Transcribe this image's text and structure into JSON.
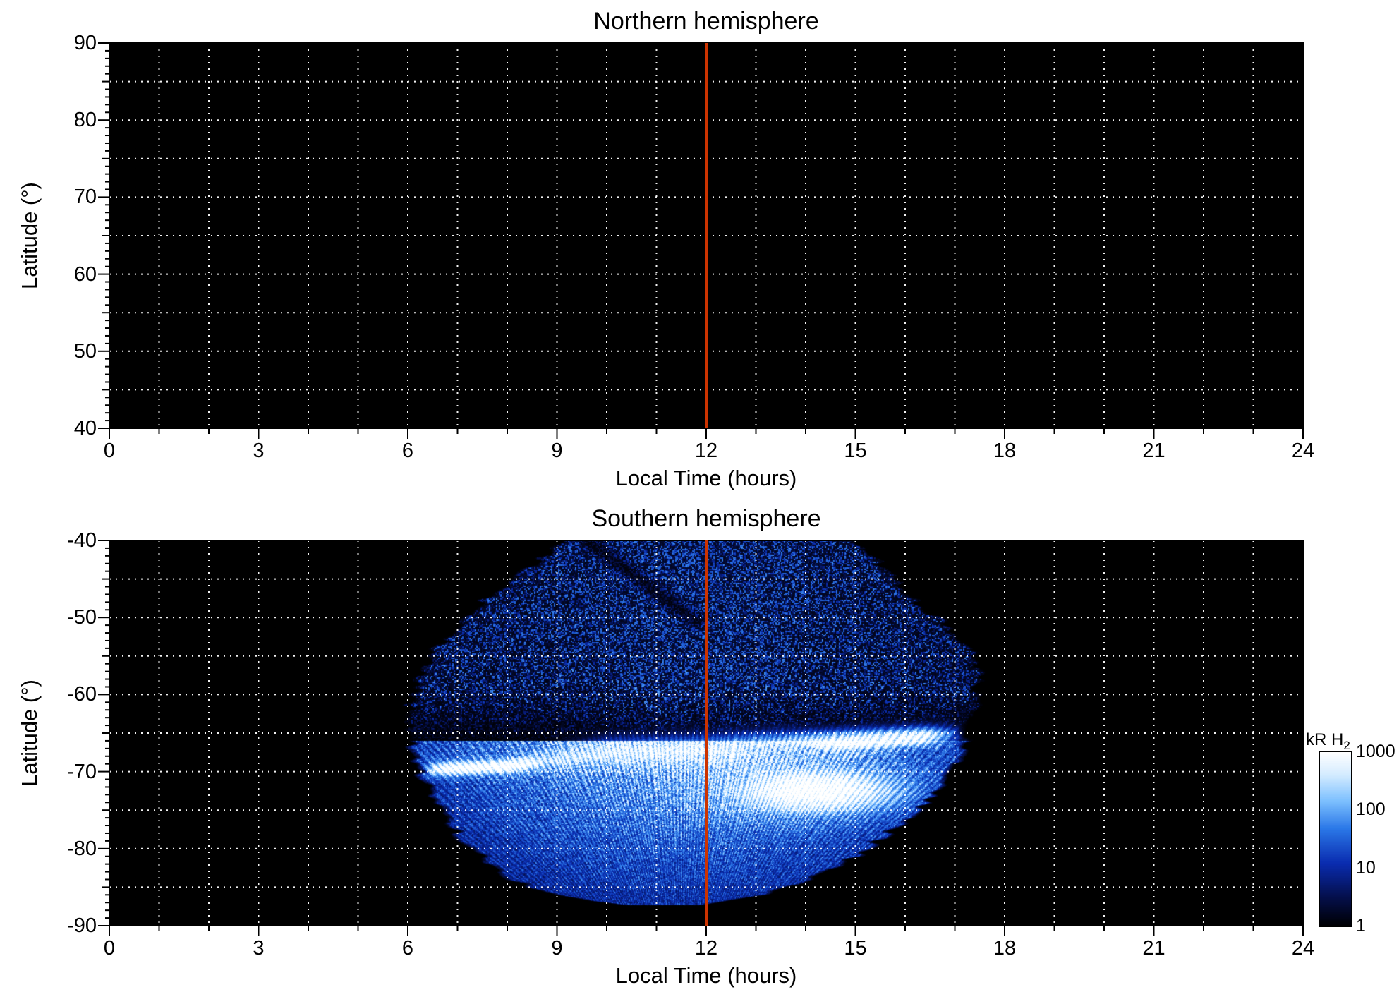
{
  "figure": {
    "background": "#ffffff",
    "grid_color": "#ffffff",
    "axis_color": "#000000",
    "meridian_line_color": "#cc3300"
  },
  "chart_data": [
    {
      "type": "heatmap",
      "panel": "north",
      "title": "Northern hemisphere",
      "xlabel": "Local Time (hours)",
      "ylabel": "Latitude (°)",
      "xlim": [
        0,
        24
      ],
      "ylim": [
        40,
        90
      ],
      "xticks": [
        0,
        3,
        6,
        9,
        12,
        15,
        18,
        21,
        24
      ],
      "yticks": [
        90,
        80,
        70,
        60,
        50,
        40
      ],
      "grid": {
        "x_step_hours": 1,
        "y_step_deg": 5,
        "style": "dotted"
      },
      "background": "#000000",
      "emission": "none - panel entirely at background level (no H2 emission observed)",
      "vertical_line": {
        "x_hours": 12,
        "color": "#cc3300"
      }
    },
    {
      "type": "heatmap",
      "panel": "south",
      "title": "Southern hemisphere",
      "xlabel": "Local Time (hours)",
      "ylabel": "Latitude (°)",
      "xlim": [
        0,
        24
      ],
      "ylim": [
        -90,
        -40
      ],
      "xticks": [
        0,
        3,
        6,
        9,
        12,
        15,
        18,
        21,
        24
      ],
      "yticks": [
        -40,
        -50,
        -60,
        -70,
        -80,
        -90
      ],
      "grid": {
        "x_step_hours": 1,
        "y_step_deg": 5,
        "style": "dotted"
      },
      "background": "#000000",
      "vertical_line": {
        "x_hours": 12,
        "color": "#cc3300"
      },
      "colorbar": {
        "label": "kR H",
        "label_sub": "2",
        "scale": "log",
        "range_kR": [
          1,
          1000
        ],
        "ticks": [
          1000,
          100,
          10,
          1
        ],
        "colormap_stops": [
          [
            0.0,
            "#000003"
          ],
          [
            0.17,
            "#05104e"
          ],
          [
            0.36,
            "#0a2cb0"
          ],
          [
            0.56,
            "#2b78e8"
          ],
          [
            0.72,
            "#7dc0ff"
          ],
          [
            0.87,
            "#d4ecff"
          ],
          [
            1.0,
            "#ffffff"
          ]
        ]
      },
      "aurora": {
        "description": "H2 auroral emission observed between ~06:00 and ~17:20 LT; bright main oval arc near -65° to -70° latitude peaking near 1000 kR at 14.5-16.5 LT and 6.8-8.2 LT; very bright broad patch around 13-16 LT at -70° to -76°; diffuse speckled 1-10 kR emission from -40° to -62°; moderate 10-100 kR emission filling -70° to -85° with fan-like scan streaks.",
        "coverage_lat_ltmin_ltmax": [
          [
            -40,
            9.3,
            14.9
          ],
          [
            -44,
            8.5,
            15.5
          ],
          [
            -48,
            7.6,
            16.1
          ],
          [
            -52,
            7.0,
            16.9
          ],
          [
            -54,
            6.7,
            17.3
          ],
          [
            -58,
            6.35,
            17.35
          ],
          [
            -62,
            6.15,
            17.3
          ],
          [
            -66,
            6.2,
            17.15
          ],
          [
            -70,
            6.35,
            16.9
          ],
          [
            -74,
            6.7,
            16.3
          ],
          [
            -78,
            7.1,
            15.6
          ],
          [
            -81,
            7.6,
            14.9
          ],
          [
            -84,
            8.2,
            14.0
          ],
          [
            -86,
            9.0,
            13.0
          ],
          [
            -87.3,
            10.3,
            11.9
          ]
        ],
        "arc_center_lat": [
          [
            6.2,
            -69.8
          ],
          [
            8,
            -69.3
          ],
          [
            10,
            -67.6
          ],
          [
            12,
            -67.2
          ],
          [
            13.5,
            -66.6
          ],
          [
            15,
            -66.0
          ],
          [
            16.5,
            -65.4
          ],
          [
            17.3,
            -65.2
          ]
        ],
        "arc_amp_log10kR": [
          [
            6.2,
            0
          ],
          [
            6.5,
            2.3
          ],
          [
            6.8,
            2.9
          ],
          [
            8.3,
            2.8
          ],
          [
            8.8,
            1.9
          ],
          [
            9.5,
            2.1
          ],
          [
            13.0,
            2.15
          ],
          [
            13.8,
            2.5
          ],
          [
            14.8,
            2.95
          ],
          [
            16.4,
            2.95
          ],
          [
            16.9,
            1.6
          ],
          [
            17.3,
            0
          ]
        ],
        "arc_width_deg": [
          [
            6.2,
            0.8
          ],
          [
            8.5,
            0.9
          ],
          [
            10,
            1.4
          ],
          [
            13,
            1.4
          ],
          [
            14.5,
            1.1
          ],
          [
            17,
            0.9
          ]
        ],
        "bright_blob": {
          "lt": 14.15,
          "lat": -72.5,
          "sigma_lt": 1.55,
          "sigma_lat": 2.7,
          "amp_log10kR": 3.05
        },
        "dark_wedge": {
          "lt": 13.6,
          "lat": -67.6
        },
        "dark_streak": {
          "from": [
            9.6,
            -40
          ],
          "to": [
            11.8,
            -50.5
          ]
        },
        "diffuse_polar": {
          "center_lt": 11.6,
          "sigma_lt": 5.0,
          "amp_log10kR": 2.2
        }
      }
    }
  ]
}
